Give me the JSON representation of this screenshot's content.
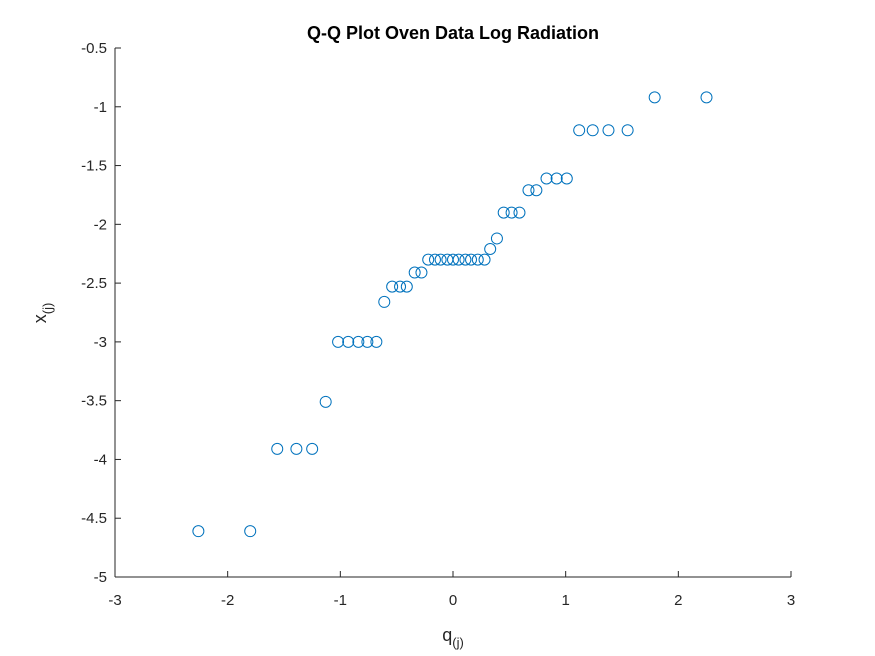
{
  "chart_data": {
    "type": "scatter",
    "title": "Q-Q Plot Oven Data Log Radiation",
    "xlabel": {
      "main": "q",
      "sub": "(j)"
    },
    "ylabel": {
      "main": "x",
      "sub": "(j)"
    },
    "xlim": [
      -3,
      3
    ],
    "ylim": [
      -5,
      -0.5
    ],
    "xticks": [
      -3,
      -2,
      -1,
      0,
      1,
      2,
      3
    ],
    "xtick_labels": [
      "-3",
      "-2",
      "-1",
      "0",
      "1",
      "2",
      "3"
    ],
    "yticks": [
      -5,
      -4.5,
      -4,
      -3.5,
      -3,
      -2.5,
      -2,
      -1.5,
      -1,
      -0.5
    ],
    "ytick_labels": [
      "-5",
      "-4.5",
      "-4",
      "-3.5",
      "-3",
      "-2.5",
      "-2",
      "-1.5",
      "-1",
      "-0.5"
    ],
    "grid": false,
    "marker": "open-circle",
    "color": "#0072BD",
    "axis_color": "#262626",
    "points": [
      {
        "x": -2.26,
        "y": -4.61
      },
      {
        "x": -1.8,
        "y": -4.61
      },
      {
        "x": -1.56,
        "y": -3.91
      },
      {
        "x": -1.39,
        "y": -3.91
      },
      {
        "x": -1.25,
        "y": -3.91
      },
      {
        "x": -1.13,
        "y": -3.51
      },
      {
        "x": -1.02,
        "y": -3.0
      },
      {
        "x": -0.93,
        "y": -3.0
      },
      {
        "x": -0.84,
        "y": -3.0
      },
      {
        "x": -0.76,
        "y": -3.0
      },
      {
        "x": -0.68,
        "y": -3.0
      },
      {
        "x": -0.61,
        "y": -2.66
      },
      {
        "x": -0.54,
        "y": -2.53
      },
      {
        "x": -0.47,
        "y": -2.53
      },
      {
        "x": -0.41,
        "y": -2.53
      },
      {
        "x": -0.34,
        "y": -2.41
      },
      {
        "x": -0.28,
        "y": -2.41
      },
      {
        "x": -0.22,
        "y": -2.3
      },
      {
        "x": -0.16,
        "y": -2.3
      },
      {
        "x": -0.11,
        "y": -2.3
      },
      {
        "x": -0.05,
        "y": -2.3
      },
      {
        "x": 0.0,
        "y": -2.3
      },
      {
        "x": 0.05,
        "y": -2.3
      },
      {
        "x": 0.11,
        "y": -2.3
      },
      {
        "x": 0.16,
        "y": -2.3
      },
      {
        "x": 0.22,
        "y": -2.3
      },
      {
        "x": 0.28,
        "y": -2.3
      },
      {
        "x": 0.33,
        "y": -2.21
      },
      {
        "x": 0.39,
        "y": -2.12
      },
      {
        "x": 0.45,
        "y": -1.9
      },
      {
        "x": 0.52,
        "y": -1.9
      },
      {
        "x": 0.59,
        "y": -1.9
      },
      {
        "x": 0.67,
        "y": -1.71
      },
      {
        "x": 0.74,
        "y": -1.71
      },
      {
        "x": 0.83,
        "y": -1.61
      },
      {
        "x": 0.92,
        "y": -1.61
      },
      {
        "x": 1.01,
        "y": -1.61
      },
      {
        "x": 1.12,
        "y": -1.2
      },
      {
        "x": 1.24,
        "y": -1.2
      },
      {
        "x": 1.38,
        "y": -1.2
      },
      {
        "x": 1.55,
        "y": -1.2
      },
      {
        "x": 1.79,
        "y": -0.92
      },
      {
        "x": 2.25,
        "y": -0.92
      }
    ]
  }
}
